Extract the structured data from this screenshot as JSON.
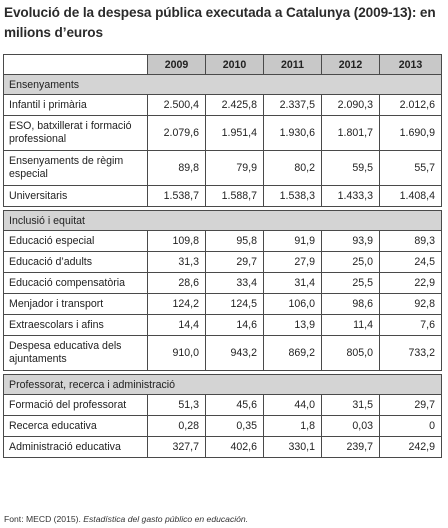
{
  "title": "Evolució de la despesa pública executada a Catalunya (2009-13): en milions d’euros",
  "table": {
    "years": [
      "2009",
      "2010",
      "2011",
      "2012",
      "2013"
    ],
    "sections": [
      {
        "name": "Ensenyaments",
        "rows": [
          {
            "label": "Infantil i primària",
            "values": [
              "2.500,4",
              "2.425,8",
              "2.337,5",
              "2.090,3",
              "2.012,6"
            ]
          },
          {
            "label": "ESO, batxillerat i formació professional",
            "values": [
              "2.079,6",
              "1.951,4",
              "1.930,6",
              "1.801,7",
              "1.690,9"
            ]
          },
          {
            "label": "Ensenyaments de règim especial",
            "values": [
              "89,8",
              "79,9",
              "80,2",
              "59,5",
              "55,7"
            ]
          },
          {
            "label": "Universitaris",
            "values": [
              "1.538,7",
              "1.588,7",
              "1.538,3",
              "1.433,3",
              "1.408,4"
            ]
          }
        ]
      },
      {
        "name": "Inclusió i equitat",
        "rows": [
          {
            "label": "Educació especial",
            "values": [
              "109,8",
              "95,8",
              "91,9",
              "93,9",
              "89,3"
            ]
          },
          {
            "label": "Educació d’adults",
            "values": [
              "31,3",
              "29,7",
              "27,9",
              "25,0",
              "24,5"
            ]
          },
          {
            "label": "Educació compensatòria",
            "values": [
              "28,6",
              "33,4",
              "31,4",
              "25,5",
              "22,9"
            ]
          },
          {
            "label": "Menjador i transport",
            "values": [
              "124,2",
              "124,5",
              "106,0",
              "98,6",
              "92,8"
            ]
          },
          {
            "label": "Extraescolars i afins",
            "values": [
              "14,4",
              "14,6",
              "13,9",
              "11,4",
              "7,6"
            ]
          },
          {
            "label": "Despesa educativa dels ajuntaments",
            "values": [
              "910,0",
              "943,2",
              "869,2",
              "805,0",
              "733,2"
            ]
          }
        ]
      },
      {
        "name": "Professorat, recerca i administració",
        "rows": [
          {
            "label": "Formació del professorat",
            "values": [
              "51,3",
              "45,6",
              "44,0",
              "31,5",
              "29,7"
            ]
          },
          {
            "label": "Recerca educativa",
            "values": [
              "0,28",
              "0,35",
              "1,8",
              "0,03",
              "0"
            ]
          },
          {
            "label": "Administració educativa",
            "values": [
              "327,7",
              "402,6",
              "330,1",
              "239,7",
              "242,9"
            ]
          }
        ]
      }
    ]
  },
  "source": {
    "prefix": "Font: MECD (2015). ",
    "publication": "Estadística del gasto público en educación."
  }
}
